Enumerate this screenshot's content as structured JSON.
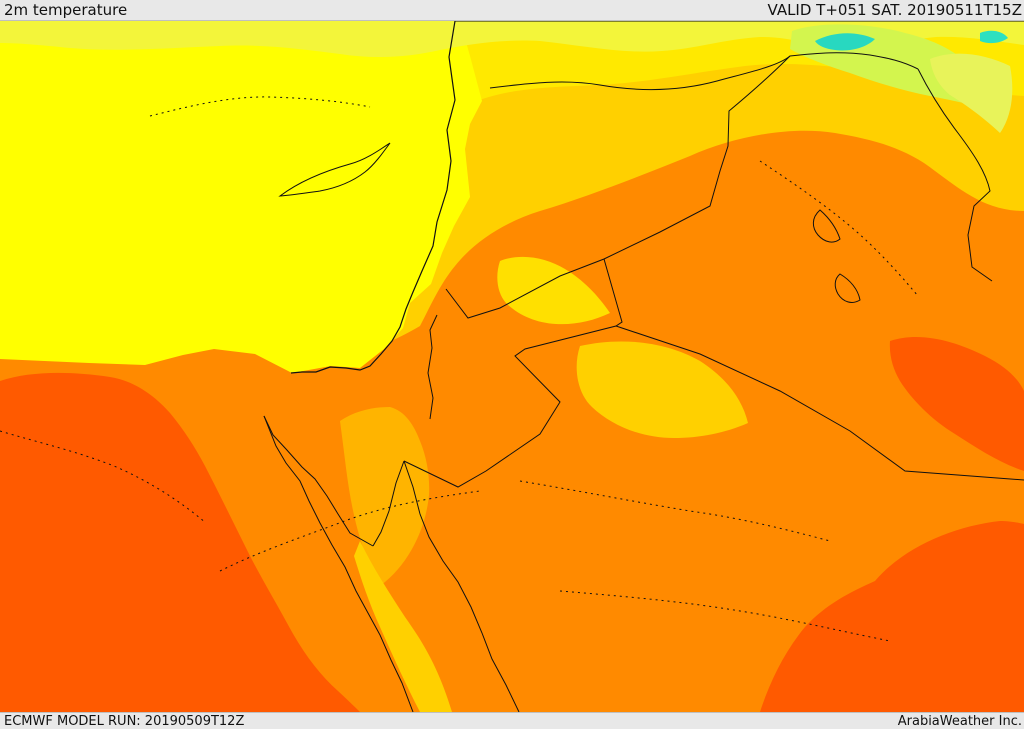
{
  "header": {
    "title": "2m temperature",
    "valid": "VALID T+051 SAT. 20190511T15Z"
  },
  "footer": {
    "model_run": "ECMWF MODEL RUN: 20190509T12Z",
    "brand": "ArabiaWeather Inc."
  },
  "map": {
    "colors": {
      "sea": "#ffff00",
      "cool": "#ffe400",
      "mild": "#ffb400",
      "warm": "#ff8a00",
      "hot": "#ff5a00",
      "green": "#c8f05a",
      "cyan": "#28d8c0",
      "border": "#111111"
    }
  }
}
